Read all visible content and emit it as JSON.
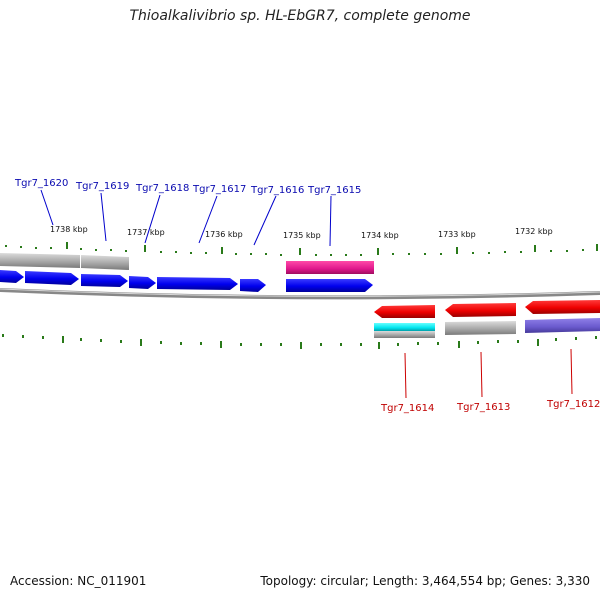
{
  "title": "Thioalkalivibrio sp. HL-EbGR7, complete genome",
  "footer": {
    "accession": "Accession: NC_011901",
    "summary": "Topology: circular; Length: 3,464,554 bp; Genes: 3,330"
  },
  "ticks": [
    "1738 kbp",
    "1737 kbp",
    "1736 kbp",
    "1735 kbp",
    "1734 kbp",
    "1733 kbp",
    "1732 kbp"
  ],
  "forward_genes": [
    "Tgr7_1620",
    "Tgr7_1619",
    "Tgr7_1618",
    "Tgr7_1617",
    "Tgr7_1616",
    "Tgr7_1615"
  ],
  "reverse_genes": [
    "Tgr7_1614",
    "Tgr7_1613",
    "Tgr7_1612"
  ],
  "colors": {
    "cds_forward": "#0000ee",
    "cds_reverse": "#ee0000",
    "rna_forward": "#e0188c",
    "rna_reverse": "#00e5ee",
    "gene_gray": "#a8a8a8",
    "blast_purple": "#6a5acd",
    "backbone": "#888888",
    "ticks": "#2a7a1a",
    "label_forward": "#0a0ab0",
    "label_reverse": "#c00000"
  }
}
